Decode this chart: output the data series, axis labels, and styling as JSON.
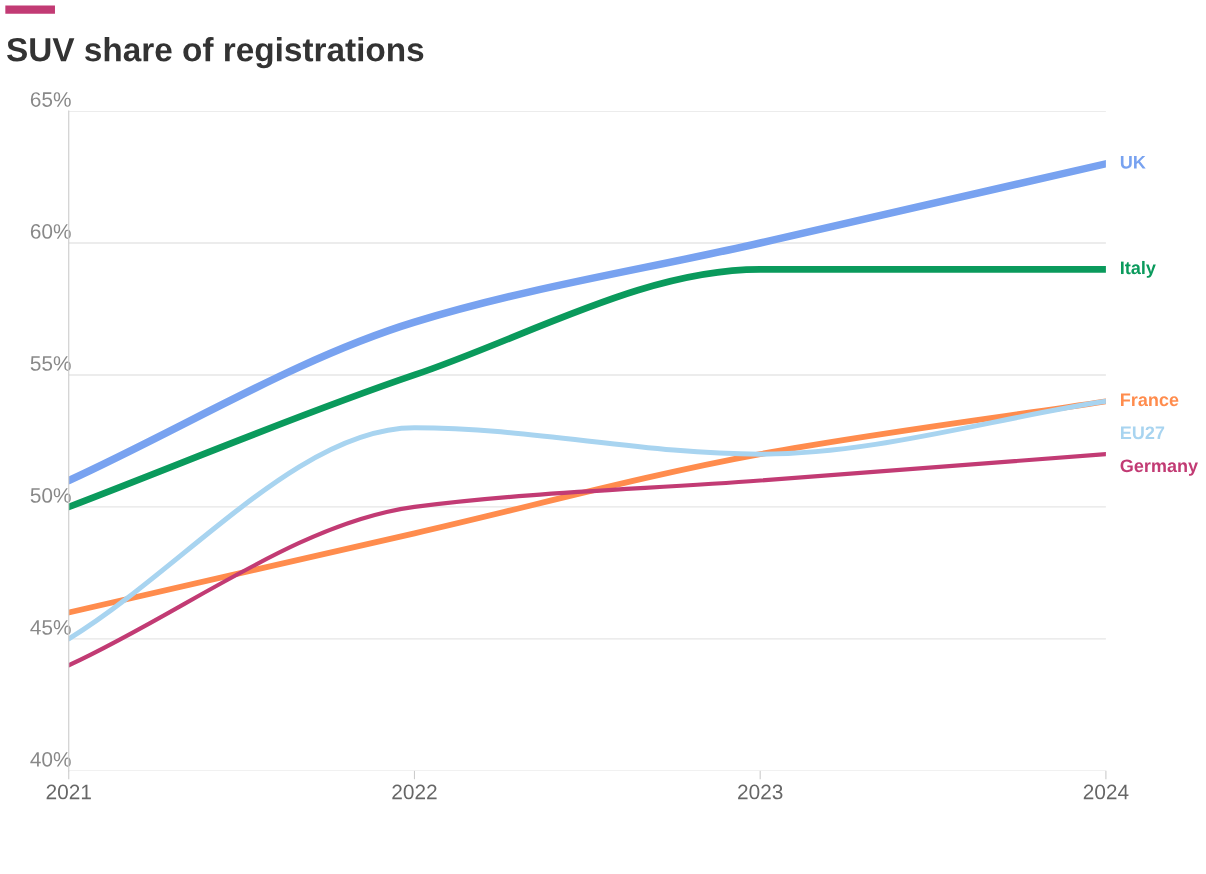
{
  "chart_data": {
    "type": "line",
    "title": "SUV share of registrations",
    "x": [
      2021,
      2022,
      2023,
      2024
    ],
    "series": [
      {
        "name": "UK",
        "color": "#78a2f0",
        "values": [
          51,
          57,
          60,
          63
        ]
      },
      {
        "name": "Italy",
        "color": "#0a9a5c",
        "values": [
          50,
          55,
          59,
          59
        ]
      },
      {
        "name": "France",
        "color": "#ff8c4d",
        "values": [
          46,
          49,
          52,
          54
        ]
      },
      {
        "name": "EU27",
        "color": "#a8d4f0",
        "values": [
          45,
          53,
          52,
          54
        ]
      },
      {
        "name": "Germany",
        "color": "#c23b74",
        "values": [
          44,
          50,
          51,
          52
        ]
      }
    ],
    "xlim": [
      2021,
      2024
    ],
    "xticks": [
      2021,
      2022,
      2023,
      2024
    ],
    "ylim": [
      40,
      65
    ],
    "yticks": [
      {
        "value": 40,
        "label": "40%"
      },
      {
        "value": 45,
        "label": "45%"
      },
      {
        "value": 50,
        "label": "50%"
      },
      {
        "value": 55,
        "label": "55%"
      },
      {
        "value": 60,
        "label": "60%"
      },
      {
        "value": 65,
        "label": "65%"
      }
    ],
    "grid": "y",
    "legend": false,
    "marker": "none",
    "line_style": "solid"
  }
}
